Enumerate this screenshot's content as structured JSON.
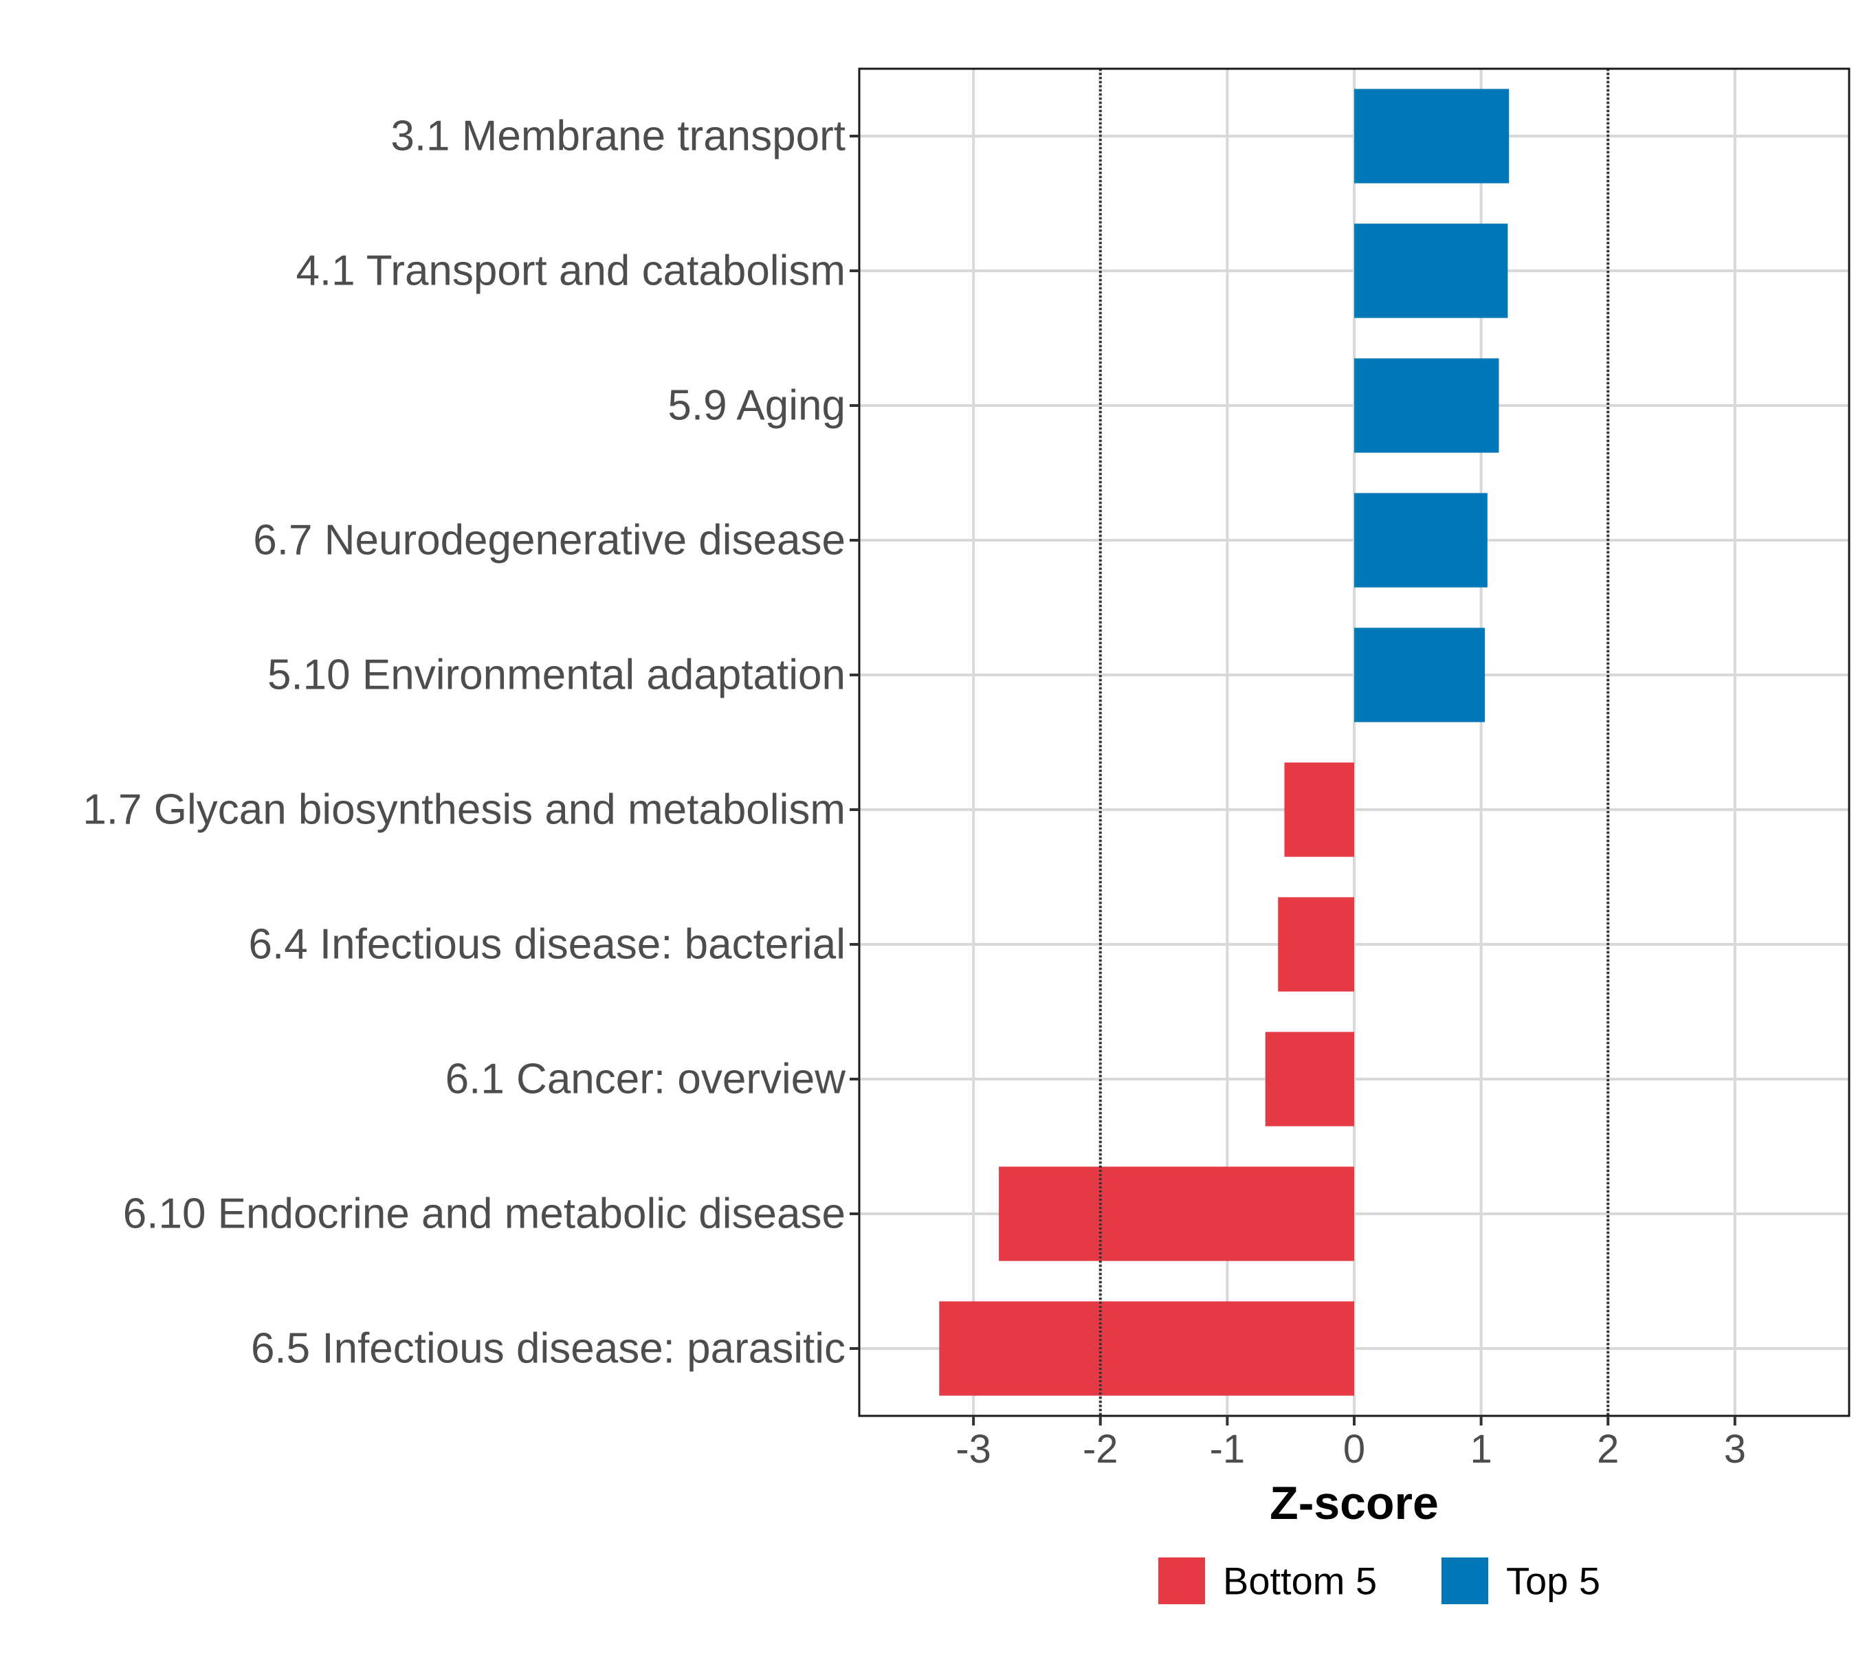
{
  "chart_data": {
    "type": "bar",
    "orientation": "horizontal",
    "categories": [
      "3.1 Membrane transport",
      "4.1 Transport and catabolism",
      "5.9 Aging",
      "6.7 Neurodegenerative disease",
      "5.10 Environmental adaptation",
      "1.7 Glycan biosynthesis and metabolism",
      "6.4 Infectious disease: bacterial",
      "6.1 Cancer: overview",
      "6.10 Endocrine and metabolic disease",
      "6.5 Infectious disease: parasitic"
    ],
    "values": [
      1.22,
      1.21,
      1.14,
      1.05,
      1.03,
      -0.55,
      -0.6,
      -0.7,
      -2.8,
      -3.27
    ],
    "groups": [
      "Top 5",
      "Top 5",
      "Top 5",
      "Top 5",
      "Top 5",
      "Bottom 5",
      "Bottom 5",
      "Bottom 5",
      "Bottom 5",
      "Bottom 5"
    ],
    "xlabel": "Z-score",
    "ylabel": "",
    "xlim": [
      -3.9,
      3.9
    ],
    "xticks": [
      -3,
      -2,
      -1,
      0,
      1,
      2,
      3
    ],
    "xtick_labels": [
      "-3",
      "-2",
      "-1",
      "0",
      "1",
      "2",
      "3"
    ],
    "reference_lines": [
      -2,
      2
    ],
    "grid": true,
    "legend": {
      "position": "bottom",
      "entries": [
        {
          "label": "Bottom 5",
          "color": "#e63946"
        },
        {
          "label": "Top 5",
          "color": "#0077b6"
        }
      ]
    },
    "colors": {
      "Top 5": "#0077b6",
      "Bottom 5": "#e63946"
    }
  }
}
